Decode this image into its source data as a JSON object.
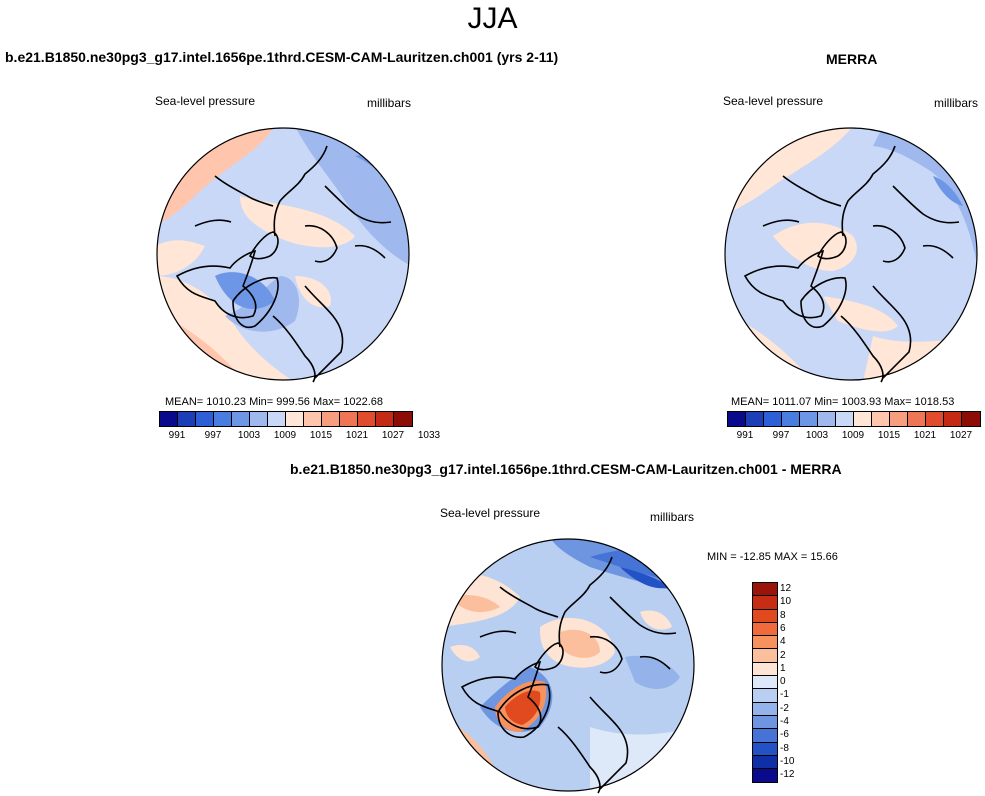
{
  "title": "JJA",
  "panels": {
    "model": {
      "title": "b.e21.B1850.ne30pg3_g17.intel.1656pe.1thrd.CESM-CAM-Lauritzen.ch001 (yrs 2-11)",
      "variable": "Sea-level pressure",
      "units": "millibars",
      "stats": "MEAN= 1010.23  Min= 999.56  Max= 1022.68"
    },
    "obs": {
      "title": "MERRA",
      "variable": "Sea-level pressure",
      "units": "millibars",
      "stats": "MEAN= 1011.07  Min= 1003.93  Max= 1018.53"
    },
    "diff": {
      "title": "b.e21.B1850.ne30pg3_g17.intel.1656pe.1thrd.CESM-CAM-Lauritzen.ch001 - MERRA",
      "variable": "Sea-level pressure",
      "units": "millibars",
      "stats": "MIN = -12.85 MAX =  15.66"
    }
  },
  "colorbar_abs": {
    "colors": [
      "#0a0a8c",
      "#1c3fb8",
      "#2d5fd6",
      "#4a7de0",
      "#6d97e6",
      "#9fb9ee",
      "#c8d8f6",
      "#ffe6d6",
      "#ffc6ad",
      "#f79e7f",
      "#ef7654",
      "#e04c2c",
      "#c42a14",
      "#8c0d05"
    ],
    "ticks": [
      "991",
      "997",
      "1003",
      "1009",
      "1015",
      "1021",
      "1027",
      "1033"
    ]
  },
  "colorbar_diff": {
    "colors": [
      "#9b1409",
      "#c72d12",
      "#e14a1f",
      "#f06a3c",
      "#f7925f",
      "#fbbf9e",
      "#fde4d4",
      "#dde8f8",
      "#b9cff2",
      "#93b3ea",
      "#6d95e0",
      "#4574d6",
      "#2352c6",
      "#0f2fa6",
      "#0a0a8c"
    ],
    "labels": [
      "12",
      "10",
      "8",
      "6",
      "4",
      "2",
      "1",
      "0",
      "-1",
      "-2",
      "-4",
      "-6",
      "-8",
      "-10",
      "-12"
    ]
  },
  "palette": {
    "land_outline": "#000000",
    "light_blue": "#c8d8f6",
    "mid_blue": "#9fb9ee",
    "blue": "#6d97e6",
    "dark_blue": "#4a7de0",
    "peach": "#ffe6d6",
    "salmon": "#ffc6ad",
    "orange": "#f79e7f",
    "red": "#ef7654"
  }
}
